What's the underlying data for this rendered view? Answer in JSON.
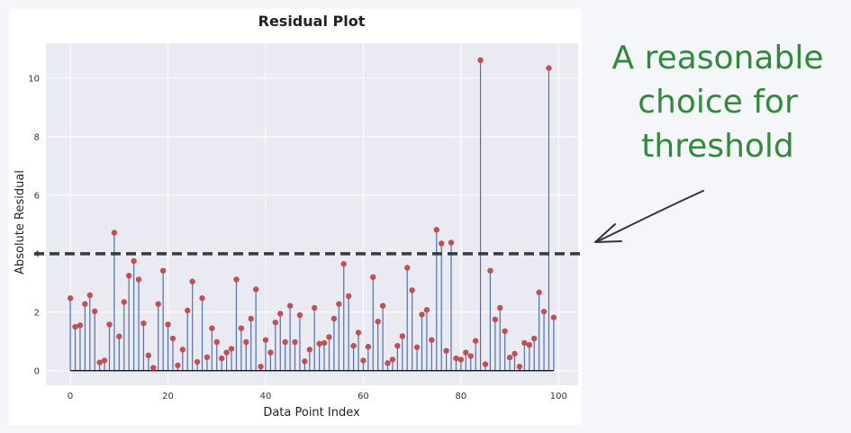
{
  "annotation": {
    "text": "A reasonable\nchoice for\nthreshold",
    "color": "#2e8b3a"
  },
  "chart_data": {
    "type": "stem",
    "title": "Residual Plot",
    "xlabel": "Data Point Index",
    "ylabel": "Absolute Residual",
    "xlim": [
      -5,
      104
    ],
    "ylim": [
      -0.5,
      11.2
    ],
    "xticks": [
      0,
      20,
      40,
      60,
      80,
      100
    ],
    "yticks": [
      0,
      2,
      4,
      6,
      8,
      10
    ],
    "grid": true,
    "background_color": "#eaeaf2",
    "stem_color": "#4c72b0",
    "marker_color": "#c44e52",
    "baseline_color": "#000000",
    "threshold": {
      "y": 4.0,
      "style": "dashed",
      "color": "#3a3a3a"
    },
    "x": [
      0,
      1,
      2,
      3,
      4,
      5,
      6,
      7,
      8,
      9,
      10,
      11,
      12,
      13,
      14,
      15,
      16,
      17,
      18,
      19,
      20,
      21,
      22,
      23,
      24,
      25,
      26,
      27,
      28,
      29,
      30,
      31,
      32,
      33,
      34,
      35,
      36,
      37,
      38,
      39,
      40,
      41,
      42,
      43,
      44,
      45,
      46,
      47,
      48,
      49,
      50,
      51,
      52,
      53,
      54,
      55,
      56,
      57,
      58,
      59,
      60,
      61,
      62,
      63,
      64,
      65,
      66,
      67,
      68,
      69,
      70,
      71,
      72,
      73,
      74,
      75,
      76,
      77,
      78,
      79,
      80,
      81,
      82,
      83,
      84,
      85,
      86,
      87,
      88,
      89,
      90,
      91,
      92,
      93,
      94,
      95,
      96,
      97,
      98,
      99
    ],
    "y": [
      2.48,
      1.5,
      1.55,
      2.28,
      2.58,
      2.03,
      0.28,
      0.35,
      1.58,
      4.72,
      1.17,
      2.35,
      3.25,
      3.75,
      3.12,
      1.62,
      0.52,
      0.1,
      2.28,
      3.42,
      1.58,
      1.1,
      0.18,
      0.72,
      2.06,
      3.05,
      0.3,
      2.48,
      0.46,
      1.45,
      0.98,
      0.42,
      0.62,
      0.75,
      3.12,
      1.45,
      0.98,
      1.78,
      2.78,
      0.14,
      1.05,
      0.62,
      1.65,
      1.95,
      0.98,
      2.22,
      0.98,
      1.9,
      0.32,
      0.72,
      2.15,
      0.92,
      0.95,
      1.15,
      1.78,
      2.28,
      3.65,
      2.55,
      0.85,
      1.3,
      0.35,
      0.82,
      3.2,
      1.68,
      2.22,
      0.26,
      0.38,
      0.85,
      1.18,
      3.52,
      2.75,
      0.8,
      1.92,
      2.08,
      1.05,
      4.82,
      4.35,
      0.68,
      4.38,
      0.42,
      0.38,
      0.62,
      0.5,
      1.02,
      10.62,
      0.22,
      3.42,
      1.75,
      2.15,
      1.35,
      0.45,
      0.58,
      0.14,
      0.95,
      0.88,
      1.1,
      2.68,
      2.02,
      10.35,
      1.82
    ]
  }
}
